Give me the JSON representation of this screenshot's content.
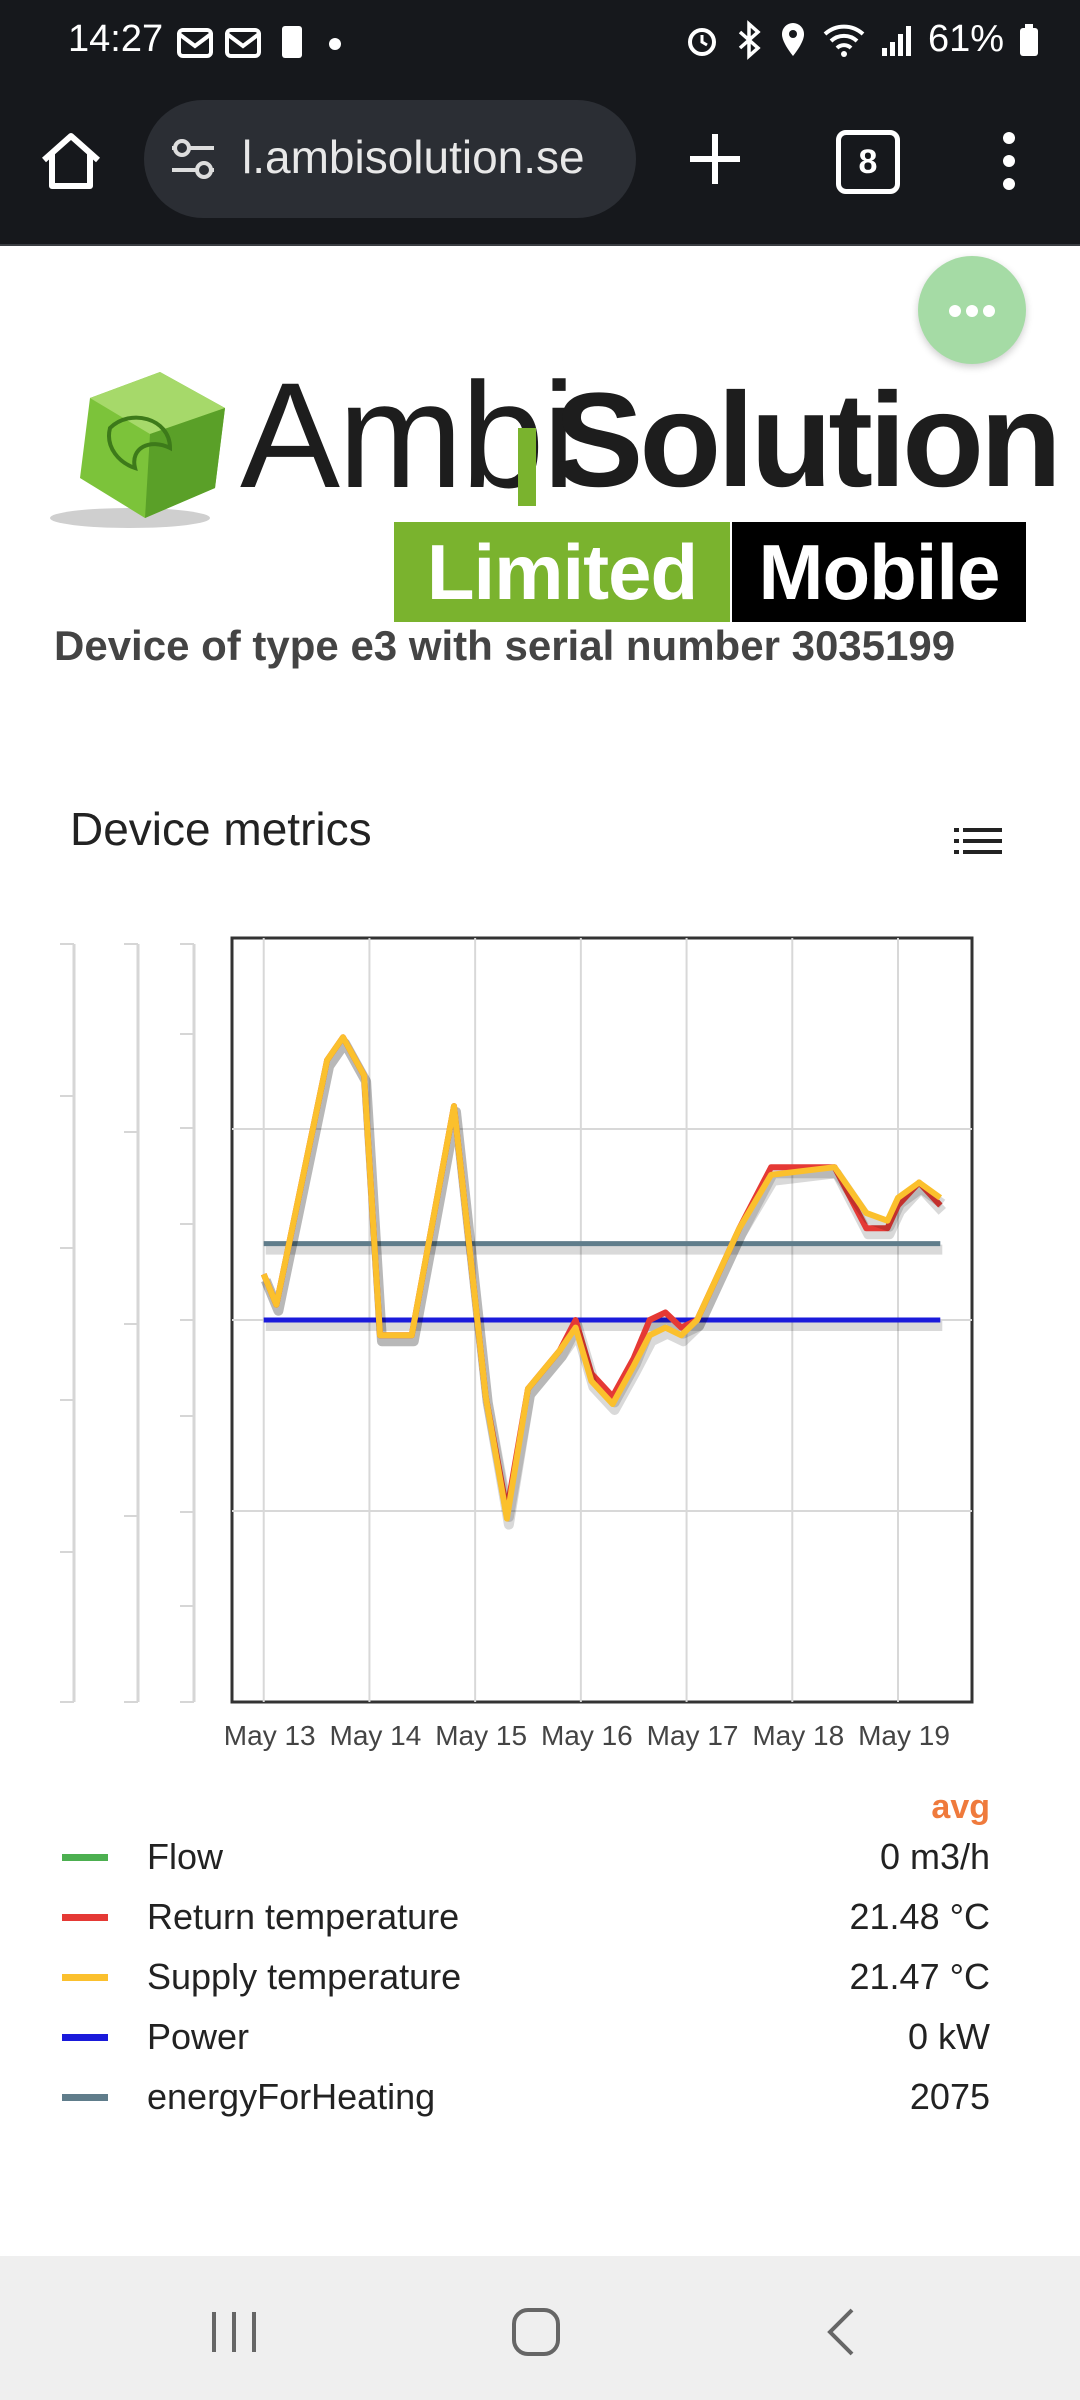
{
  "status_bar": {
    "time": "14:27",
    "battery": "61%",
    "icons": [
      "notification-icon",
      "notification-icon",
      "notification-icon",
      "alarm-icon",
      "bluetooth-icon",
      "location-icon",
      "wifi-icon",
      "signal-icon",
      "battery-icon"
    ]
  },
  "browser": {
    "url": "l.ambisolution.se",
    "tab_count": "8"
  },
  "logo": {
    "part1": "Ambi",
    "part2": "Solution",
    "badge1": "Limited",
    "badge2": "Mobile"
  },
  "page": {
    "device_title": "Device of type e3 with serial number 3035199"
  },
  "metrics": {
    "title": "Device metrics",
    "avg_label": "avg",
    "legend": [
      {
        "name": "Flow",
        "value": "0 m3/h",
        "color": "#4caf50"
      },
      {
        "name": "Return temperature",
        "value": "21.48 °C",
        "color": "#e53935"
      },
      {
        "name": "Supply temperature",
        "value": "21.47 °C",
        "color": "#fbc02d"
      },
      {
        "name": "Power",
        "value": "0 kW",
        "color": "#1a1adb"
      },
      {
        "name": "energyForHeating",
        "value": "2075",
        "color": "#607d8b"
      }
    ]
  },
  "chart_data": {
    "type": "line",
    "x_tick_labels": [
      "May 13",
      "May 14",
      "May 15",
      "May 16",
      "May 17",
      "May 18",
      "May 19"
    ],
    "grid": true,
    "y_axes_labels_visible": false,
    "series": [
      {
        "name": "Return temperature",
        "color": "#e53935",
        "x": [
          0,
          0.12,
          0.6,
          0.75,
          0.95,
          1.1,
          1.4,
          1.8,
          2.1,
          2.3,
          2.5,
          2.8,
          2.95,
          3.1,
          3.3,
          3.5,
          3.65,
          3.8,
          3.95,
          4.1,
          4.5,
          4.8,
          5.4,
          5.7,
          5.9,
          6.0,
          6.2,
          6.4
        ],
        "y": [
          0.56,
          0.52,
          0.84,
          0.87,
          0.82,
          0.48,
          0.48,
          0.78,
          0.4,
          0.25,
          0.41,
          0.46,
          0.5,
          0.43,
          0.4,
          0.45,
          0.5,
          0.51,
          0.49,
          0.5,
          0.62,
          0.7,
          0.7,
          0.62,
          0.62,
          0.65,
          0.68,
          0.65
        ]
      },
      {
        "name": "Supply temperature",
        "color": "#fbc02d",
        "x": [
          0,
          0.12,
          0.6,
          0.75,
          0.95,
          1.1,
          1.4,
          1.8,
          2.1,
          2.3,
          2.5,
          2.8,
          2.95,
          3.1,
          3.3,
          3.5,
          3.65,
          3.8,
          3.95,
          4.1,
          4.5,
          4.8,
          5.4,
          5.7,
          5.9,
          6.0,
          6.2,
          6.4
        ],
        "y": [
          0.56,
          0.52,
          0.84,
          0.87,
          0.82,
          0.48,
          0.48,
          0.78,
          0.4,
          0.24,
          0.41,
          0.46,
          0.49,
          0.42,
          0.39,
          0.44,
          0.48,
          0.49,
          0.48,
          0.5,
          0.62,
          0.69,
          0.7,
          0.64,
          0.63,
          0.66,
          0.68,
          0.66
        ]
      },
      {
        "name": "Power",
        "color": "#1a1adb",
        "x": [
          0,
          6.4
        ],
        "y": [
          0.5,
          0.5
        ]
      },
      {
        "name": "energyForHeating",
        "color": "#607d8b",
        "x": [
          0,
          6.4
        ],
        "y": [
          0.6,
          0.6
        ]
      }
    ]
  }
}
